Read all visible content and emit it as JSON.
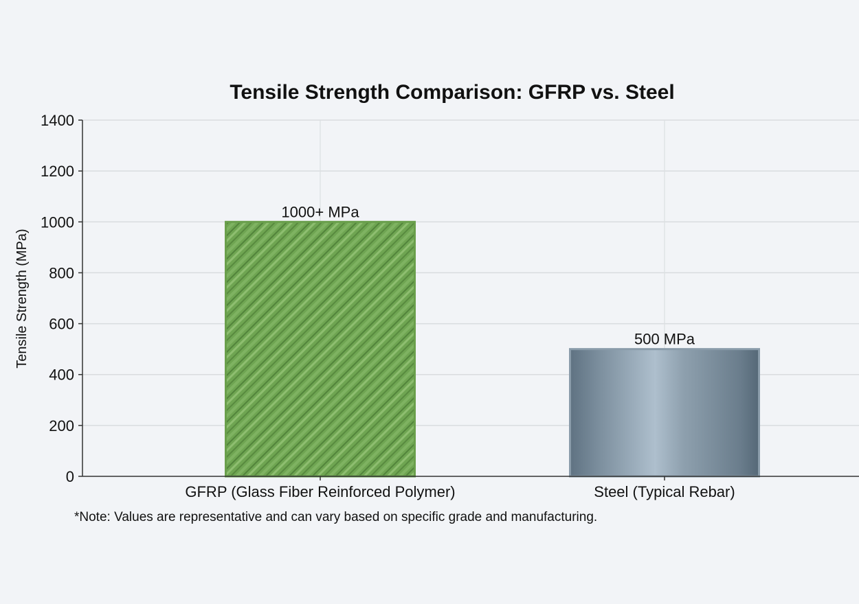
{
  "chart_data": {
    "type": "bar",
    "title": "Tensile Strength Comparison: GFRP vs. Steel",
    "xlabel": "",
    "ylabel": "Tensile Strength (MPa)",
    "ylim": [
      0,
      1400
    ],
    "yticks": [
      0,
      200,
      400,
      600,
      800,
      1000,
      1200,
      1400
    ],
    "categories": [
      "GFRP (Glass Fiber Reinforced Polymer)",
      "Steel (Typical Rebar)"
    ],
    "values": [
      1000,
      500
    ],
    "data_labels": [
      "1000+ MPa",
      "500 MPa"
    ],
    "colors": [
      "#6a9f4c",
      "#8a9caa"
    ],
    "grid": true,
    "note": "*Note: Values are representative and can vary based on specific grade and manufacturing."
  }
}
